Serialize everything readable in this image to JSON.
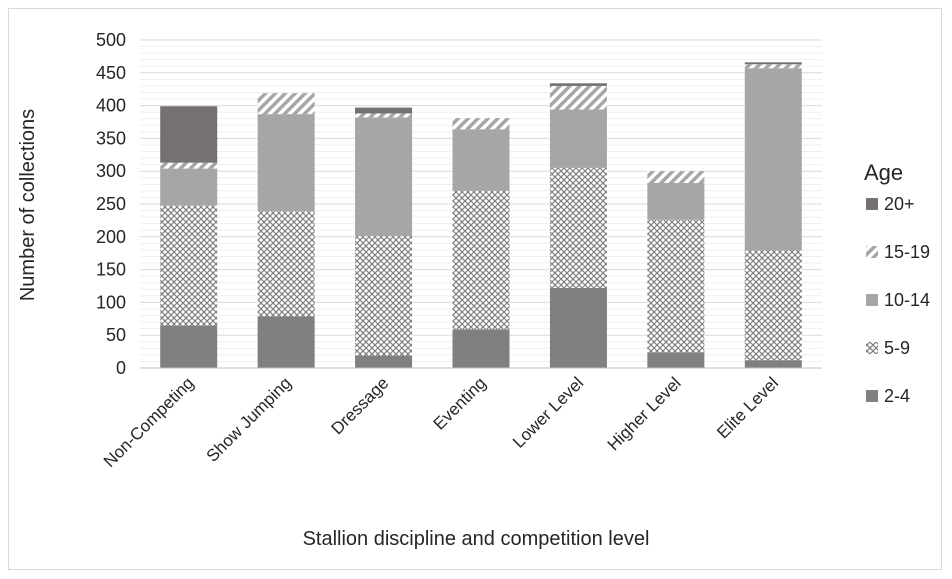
{
  "chart_data": {
    "type": "bar",
    "stacked": true,
    "title": "",
    "xlabel": "Stallion discipline and competition level",
    "ylabel": "Number of collections",
    "ylim": [
      0,
      500
    ],
    "yticks": [
      "0",
      "50",
      "100",
      "150",
      "200",
      "250",
      "300",
      "350",
      "400",
      "450",
      "500"
    ],
    "grid": true,
    "legend_title": "Age",
    "legend_position": "right",
    "categories": [
      "Non-Competing",
      "Show Jumping",
      "Dressage",
      "Eventing",
      "Lower Level",
      "Higher Level",
      "Elite Level"
    ],
    "series": [
      {
        "name": "2-4",
        "pattern": "solid-dark",
        "color": "#808080",
        "values": [
          65,
          79,
          19,
          59,
          122,
          24,
          12
        ]
      },
      {
        "name": "5-9",
        "pattern": "crosshatch-dots",
        "color": "#a6a6a6",
        "values": [
          183,
          160,
          182,
          211,
          183,
          202,
          167
        ]
      },
      {
        "name": "10-14",
        "pattern": "solid-light",
        "color": "#a6a6a6",
        "values": [
          56,
          148,
          181,
          94,
          89,
          56,
          278
        ]
      },
      {
        "name": "15-19",
        "pattern": "diagonal-stripes",
        "color": "#a6a6a6",
        "values": [
          9,
          32,
          6,
          17,
          36,
          18,
          6
        ]
      },
      {
        "name": "20+",
        "pattern": "solid-darkest",
        "color": "#767171",
        "values": [
          86,
          0,
          9,
          0,
          4,
          0,
          3
        ]
      }
    ]
  }
}
